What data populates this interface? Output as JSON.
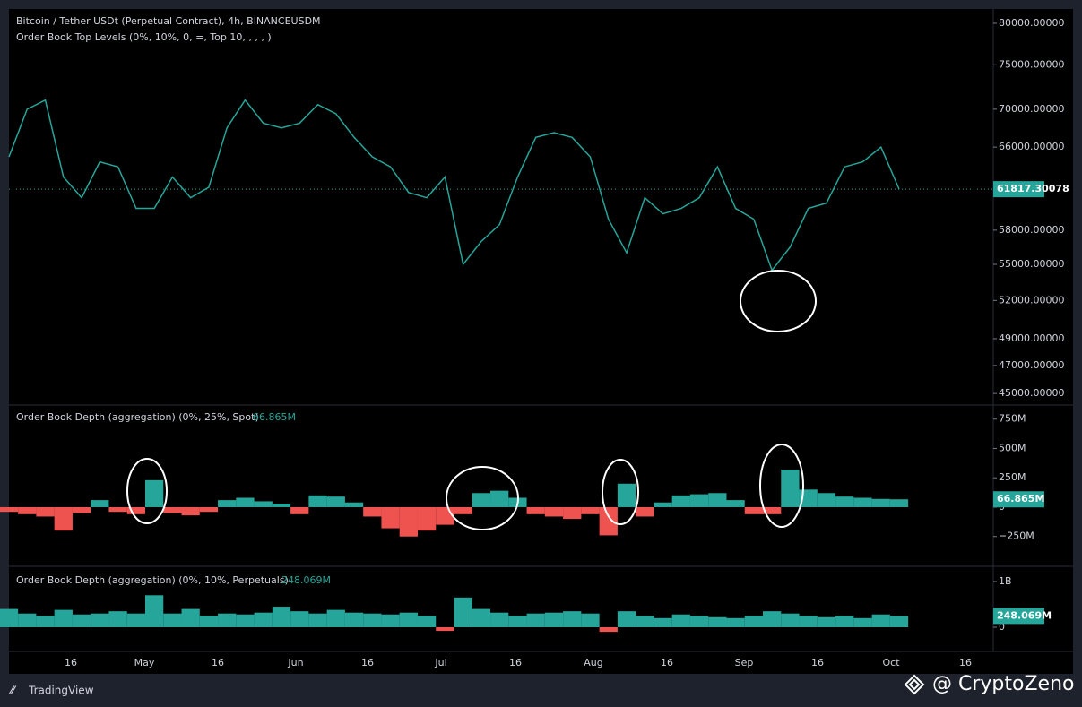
{
  "header": {
    "symbol": "Bitcoin / Tether USDt (Perpetual Contract), 4h, BINANCEUSDM",
    "indicator": "Order Book Top Levels (0%, 10%, 0, =, Top 10, , , , )"
  },
  "chart_data": [
    {
      "type": "line",
      "color": "#26a69a",
      "log": true,
      "values": [
        65000,
        70000,
        71000,
        63000,
        61000,
        64500,
        64000,
        60000,
        60000,
        63000,
        61000,
        62000,
        68000,
        71000,
        68500,
        68000,
        68500,
        70500,
        69500,
        67000,
        65000,
        64000,
        61500,
        61000,
        63000,
        55000,
        57000,
        58500,
        63000,
        67000,
        67500,
        67000,
        65000,
        59000,
        56000,
        61000,
        59500,
        60000,
        61000,
        64000,
        60000,
        59000,
        54500,
        56500,
        60000,
        60500,
        64000,
        64500,
        66000,
        61817.30078
      ],
      "ylim": [
        44200,
        81800
      ],
      "yticks": [
        {
          "value": 80000,
          "label": "80000.00000"
        },
        {
          "value": 75000,
          "label": "75000.00000"
        },
        {
          "value": 70000,
          "label": "70000.00000"
        },
        {
          "value": 66000,
          "label": "66000.00000"
        },
        {
          "value": 58000,
          "label": "58000.00000"
        },
        {
          "value": 55000,
          "label": "55000.00000"
        },
        {
          "value": 52000,
          "label": "52000.00000"
        },
        {
          "value": 49000,
          "label": "49000.00000"
        },
        {
          "value": 47000,
          "label": "47000.00000"
        },
        {
          "value": 45000,
          "label": "45000.00000"
        }
      ],
      "last": {
        "value": 61817.30078,
        "label": "61817.30078"
      }
    },
    {
      "type": "histogram",
      "title": "Order Book Depth (aggregation) (0%, 25%, Spot)",
      "color": "#26a69a",
      "negative_color": "#ef5350",
      "values": [
        -40,
        -60,
        -80,
        -200,
        -50,
        60,
        -40,
        -60,
        230,
        -50,
        -70,
        -40,
        60,
        80,
        50,
        30,
        -60,
        100,
        90,
        40,
        -80,
        -180,
        -250,
        -200,
        -150,
        -60,
        120,
        140,
        80,
        -60,
        -80,
        -100,
        -60,
        -240,
        200,
        -80,
        40,
        100,
        110,
        120,
        60,
        -60,
        -60,
        320,
        150,
        120,
        90,
        80,
        70,
        66.865
      ],
      "ylim": [
        -504,
        870
      ],
      "yticks": [
        {
          "value": 750,
          "label": "750M"
        },
        {
          "value": 500,
          "label": "500M"
        },
        {
          "value": 250,
          "label": "250M"
        },
        0,
        {
          "value": -250,
          "label": "−250M"
        }
      ],
      "last": {
        "value": 66.865,
        "label": "66.865M"
      }
    },
    {
      "type": "histogram",
      "title": "Order Book Depth (aggregation) (0%, 10%, Perpetuals)",
      "color": "#26a69a",
      "negative_color": "#ef5350",
      "values": [
        400,
        300,
        250,
        380,
        280,
        300,
        350,
        300,
        700,
        300,
        400,
        250,
        300,
        280,
        320,
        450,
        350,
        300,
        380,
        320,
        300,
        280,
        320,
        250,
        -80,
        650,
        400,
        320,
        250,
        300,
        320,
        350,
        300,
        -100,
        350,
        250,
        200,
        280,
        250,
        220,
        200,
        250,
        350,
        300,
        250,
        220,
        250,
        200,
        280,
        248.069
      ],
      "ylim": [
        -529,
        1333
      ],
      "yticks": [
        {
          "value": 1000,
          "label": "1B"
        },
        0
      ],
      "last": {
        "value": 248.069,
        "label": "248.069M"
      }
    }
  ],
  "time_axis": {
    "categories": [
      "16",
      "May",
      "16",
      "Jun",
      "16",
      "Jul",
      "16",
      "Aug",
      "16",
      "Sep",
      "16",
      "Oct",
      "16"
    ]
  },
  "footer": {
    "brand": "TradingView",
    "credit": "@ CryptoZeno"
  }
}
